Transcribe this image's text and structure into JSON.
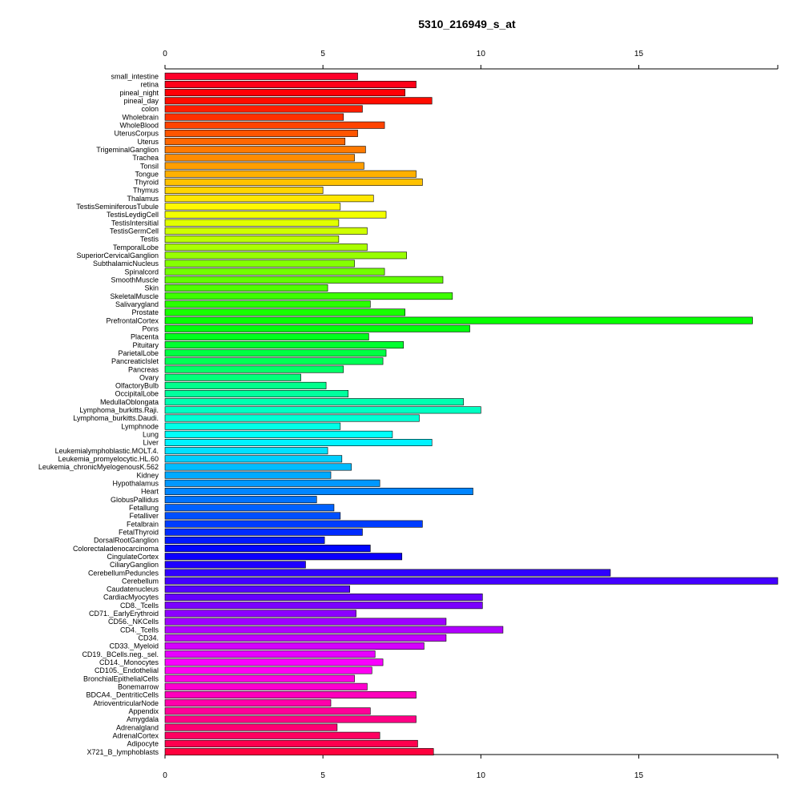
{
  "chart_data": {
    "type": "bar",
    "orientation": "horizontal",
    "title": "5310_216949_s_at",
    "xlabel": "",
    "ylabel": "",
    "xlim": [
      0,
      19.4
    ],
    "x_ticks": [
      0,
      5,
      10,
      15
    ],
    "grid": false,
    "categories": [
      "small_intestine",
      "retina",
      "pineal_night",
      "pineal_day",
      "colon",
      "Wholebrain",
      "WholeBlood",
      "UterusCorpus",
      "Uterus",
      "TrigeminalGanglion",
      "Trachea",
      "Tonsil",
      "Tongue",
      "Thyroid",
      "Thymus",
      "Thalamus",
      "TestisSeminiferousTubule",
      "TestisLeydigCell",
      "TestisIntersitial",
      "TestisGermCell",
      "Testis",
      "TemporalLobe",
      "SuperiorCervicalGanglion",
      "SubthalamicNucleus",
      "Spinalcord",
      "SmoothMuscle",
      "Skin",
      "SkeletalMuscle",
      "Salivarygland",
      "Prostate",
      "PrefrontalCortex",
      "Pons",
      "Placenta",
      "Pituitary",
      "ParietalLobe",
      "PancreaticIslet",
      "Pancreas",
      "Ovary",
      "OlfactoryBulb",
      "OccipitalLobe",
      "MedullaOblongata",
      "Lymphoma_burkitts.Raji.",
      "Lymphoma_burkitts.Daudi.",
      "Lymphnode",
      "Lung",
      "Liver",
      "Leukemialymphoblastic.MOLT.4.",
      "Leukemia_promyelocytic.HL.60",
      "Leukemia_chronicMyelogenousK.562",
      "Kidney",
      "Hypothalamus",
      "Heart",
      "GlobusPallidus",
      "Fetallung",
      "Fetalliver",
      "Fetalbrain",
      "FetalThyroid",
      "DorsalRootGanglion",
      "Colorectaladenocarcinoma",
      "CingulateCortex",
      "CiliaryGanglion",
      "CerebellumPeduncles",
      "Cerebellum",
      "Caudatenucleus",
      "CardiacMyocytes",
      "CD8._Tcells",
      "CD71._EarlyErythroid",
      "CD56._NKCells",
      "CD4._Tcells",
      "CD34.",
      "CD33._Myeloid",
      "CD19._BCells.neg._sel.",
      "CD14._Monocytes",
      "CD105._Endothelial",
      "BronchialEpithelialCells",
      "Bonemarrow",
      "BDCA4._DentriticCells",
      "AtrioventricularNode",
      "Appendix",
      "Amygdala",
      "Adrenalgland",
      "AdrenalCortex",
      "Adipocyte",
      "X721_B_lymphoblasts"
    ],
    "values": [
      6.1,
      7.95,
      7.6,
      8.45,
      6.25,
      5.65,
      6.95,
      6.1,
      5.7,
      6.35,
      6.0,
      6.3,
      7.95,
      8.15,
      5.0,
      6.6,
      5.55,
      7.0,
      5.5,
      6.4,
      5.5,
      6.4,
      7.65,
      6.0,
      6.95,
      8.8,
      5.15,
      9.1,
      6.5,
      7.6,
      18.6,
      9.65,
      6.45,
      7.55,
      7.0,
      6.9,
      5.65,
      4.3,
      5.1,
      5.8,
      9.45,
      10.0,
      8.05,
      5.55,
      7.2,
      8.45,
      5.15,
      5.6,
      5.9,
      5.25,
      6.8,
      9.75,
      4.8,
      5.35,
      5.55,
      8.15,
      6.25,
      5.05,
      6.5,
      7.5,
      4.45,
      14.1,
      19.4,
      5.85,
      10.05,
      10.05,
      6.05,
      8.9,
      10.7,
      8.9,
      8.2,
      6.65,
      6.9,
      6.55,
      6.0,
      6.4,
      7.95,
      5.25,
      6.5,
      7.95,
      5.45,
      6.8,
      8.0,
      8.5
    ],
    "colors_note": "rainbow gradient from top (red) through magenta, purple, blue, cyan, green, yellow, orange back to red at bottom"
  }
}
